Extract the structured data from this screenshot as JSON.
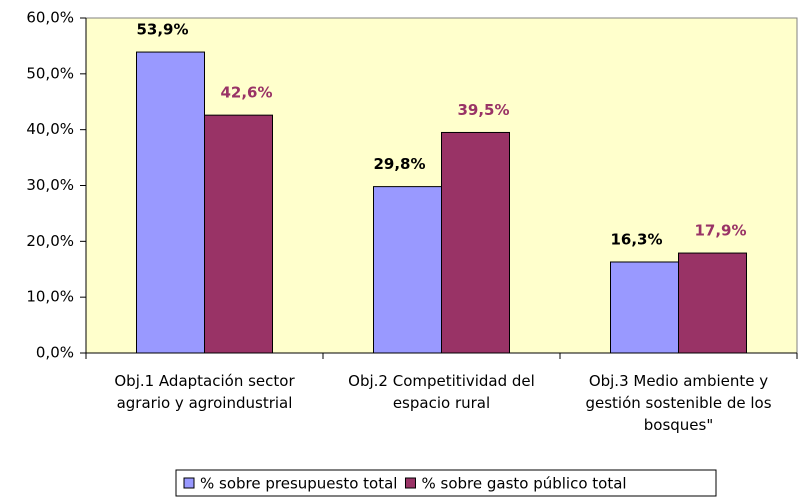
{
  "chart_data": {
    "type": "bar",
    "categories": [
      "Obj.1 Adaptación sector agrario y agroindustrial",
      "Obj.2 Competitividad del espacio rural",
      "Obj.3 Medio ambiente y gestión sostenible de los bosques\""
    ],
    "series": [
      {
        "name": "% sobre presupuesto total",
        "color": "#9999ff",
        "label_color": "#000000",
        "values": [
          53.9,
          29.8,
          16.3
        ],
        "value_labels": [
          "53,9%",
          "29,8%",
          "16,3%"
        ]
      },
      {
        "name": "% sobre gasto público total",
        "color": "#993366",
        "label_color": "#993366",
        "values": [
          42.6,
          39.5,
          17.9
        ],
        "value_labels": [
          "42,6%",
          "39,5%",
          "17,9%"
        ]
      }
    ],
    "ylim": [
      0,
      60
    ],
    "yticks": [
      {
        "value": 0,
        "label": "0,0%"
      },
      {
        "value": 10,
        "label": "10,0%"
      },
      {
        "value": 20,
        "label": "20,0%"
      },
      {
        "value": 30,
        "label": "30,0%"
      },
      {
        "value": 40,
        "label": "40,0%"
      },
      {
        "value": 50,
        "label": "50,0%"
      },
      {
        "value": 60,
        "label": "60,0%"
      }
    ],
    "grid": false,
    "legend": "bottom"
  }
}
